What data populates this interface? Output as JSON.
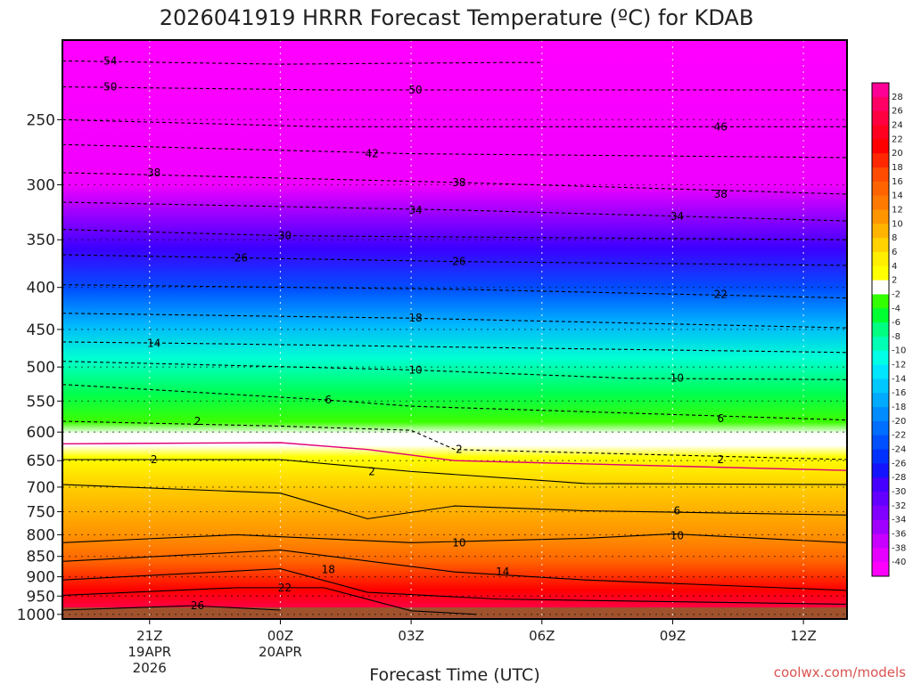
{
  "chart_data": {
    "type": "heatmap",
    "title": "2026041919 HRRR Forecast Temperature (ºC) for KDAB",
    "xlabel": "Forecast Time (UTC)",
    "ylabel": "",
    "credit": "coolwx.com/models",
    "x_ticks": [
      {
        "hour": 2,
        "lines": [
          "21Z",
          "19APR",
          "2026"
        ]
      },
      {
        "hour": 5,
        "lines": [
          "00Z",
          "20APR"
        ]
      },
      {
        "hour": 8,
        "lines": [
          "03Z"
        ]
      },
      {
        "hour": 11,
        "lines": [
          "06Z"
        ]
      },
      {
        "hour": 14,
        "lines": [
          "09Z"
        ]
      },
      {
        "hour": 17,
        "lines": [
          "12Z"
        ]
      }
    ],
    "xlim": [
      0,
      18
    ],
    "y_ticks": [
      "250",
      "300",
      "350",
      "400",
      "450",
      "500",
      "550",
      "600",
      "650",
      "700",
      "750",
      "800",
      "850",
      "900",
      "950",
      "1000"
    ],
    "ylim": [
      1013,
      200
    ],
    "y_scale": "log pressure",
    "colorbar_ticks": [
      "28",
      "26",
      "24",
      "22",
      "20",
      "18",
      "16",
      "14",
      "12",
      "10",
      "8",
      "6",
      "4",
      "2",
      "-2",
      "-4",
      "-6",
      "-8",
      "-10",
      "-12",
      "-14",
      "-16",
      "-18",
      "-20",
      "-22",
      "-24",
      "-26",
      "-28",
      "-30",
      "-32",
      "-34",
      "-36",
      "-38",
      "-40"
    ],
    "colorbar_colors": [
      "#ff0096",
      "#ff0064",
      "#ff0040",
      "#ff0020",
      "#ff0000",
      "#ff2800",
      "#ff4c00",
      "#ff6400",
      "#ff7a00",
      "#ff9600",
      "#ffb400",
      "#ffd200",
      "#ffee00",
      "#ffff00",
      "#ffffff",
      "#32ff00",
      "#00ff32",
      "#00ff80",
      "#00ffb4",
      "#00ffe6",
      "#00e6ff",
      "#00c8ff",
      "#00aaff",
      "#008cff",
      "#006eff",
      "#0050ff",
      "#0032ff",
      "#1414ff",
      "#4600ff",
      "#6400ff",
      "#8200ff",
      "#a000ff",
      "#c800ff",
      "#e600ff",
      "#ff00ff"
    ],
    "contours": [
      {
        "label": "-54",
        "values": [
          {
            "p": 212,
            "x": 0
          },
          {
            "p": 214,
            "x": 5
          },
          {
            "p": 213,
            "x": 10
          },
          {
            "p": 213,
            "x": 11
          }
        ]
      },
      {
        "label": "-50",
        "values": [
          {
            "p": 228,
            "x": 0
          },
          {
            "p": 230,
            "x": 6
          },
          {
            "p": 230,
            "x": 18
          }
        ]
      },
      {
        "label": "-46",
        "values": [
          {
            "p": 250,
            "x": 0
          },
          {
            "p": 255,
            "x": 6
          },
          {
            "p": 255,
            "x": 18
          }
        ]
      },
      {
        "label": "-42",
        "values": [
          {
            "p": 268,
            "x": 0
          },
          {
            "p": 275,
            "x": 8
          },
          {
            "p": 278,
            "x": 18
          }
        ]
      },
      {
        "label": "-38",
        "values": [
          {
            "p": 290,
            "x": 0
          },
          {
            "p": 298,
            "x": 9
          },
          {
            "p": 308,
            "x": 18
          }
        ]
      },
      {
        "label": "-34",
        "values": [
          {
            "p": 315,
            "x": 0
          },
          {
            "p": 322,
            "x": 9
          },
          {
            "p": 332,
            "x": 18
          }
        ]
      },
      {
        "label": "-30",
        "values": [
          {
            "p": 340,
            "x": 0
          },
          {
            "p": 346,
            "x": 5
          },
          {
            "p": 350,
            "x": 18
          }
        ]
      },
      {
        "label": "-26",
        "values": [
          {
            "p": 365,
            "x": 0
          },
          {
            "p": 372,
            "x": 9
          },
          {
            "p": 376,
            "x": 18
          }
        ]
      },
      {
        "label": "-22",
        "values": [
          {
            "p": 397,
            "x": 0
          },
          {
            "p": 402,
            "x": 9
          },
          {
            "p": 412,
            "x": 18
          }
        ]
      },
      {
        "label": "-18",
        "values": [
          {
            "p": 430,
            "x": 0
          },
          {
            "p": 436,
            "x": 8
          },
          {
            "p": 448,
            "x": 18
          }
        ]
      },
      {
        "label": "-14",
        "values": [
          {
            "p": 466,
            "x": 0
          },
          {
            "p": 468,
            "x": 3
          },
          {
            "p": 480,
            "x": 18
          }
        ]
      },
      {
        "label": "-10",
        "values": [
          {
            "p": 492,
            "x": 0
          },
          {
            "p": 504,
            "x": 8
          },
          {
            "p": 516,
            "x": 13
          },
          {
            "p": 518,
            "x": 18
          }
        ]
      },
      {
        "label": "-6",
        "values": [
          {
            "p": 525,
            "x": 0
          },
          {
            "p": 548,
            "x": 6
          },
          {
            "p": 558,
            "x": 8
          },
          {
            "p": 580,
            "x": 18
          }
        ]
      },
      {
        "label": "-2",
        "values": [
          {
            "p": 582,
            "x": 0
          },
          {
            "p": 590,
            "x": 5
          },
          {
            "p": 597,
            "x": 8
          },
          {
            "p": 630,
            "x": 9
          },
          {
            "p": 648,
            "x": 18
          }
        ]
      },
      {
        "label": "2",
        "values": [
          {
            "p": 648,
            "x": 0
          },
          {
            "p": 648,
            "x": 5
          },
          {
            "p": 670,
            "x": 8
          },
          {
            "p": 693,
            "x": 12
          },
          {
            "p": 695,
            "x": 18
          }
        ]
      },
      {
        "label": "6",
        "values": [
          {
            "p": 695,
            "x": 0
          },
          {
            "p": 712,
            "x": 5
          },
          {
            "p": 765,
            "x": 7
          },
          {
            "p": 738,
            "x": 9
          },
          {
            "p": 748,
            "x": 12
          },
          {
            "p": 757,
            "x": 18
          }
        ]
      },
      {
        "label": "10",
        "values": [
          {
            "p": 818,
            "x": 0
          },
          {
            "p": 800,
            "x": 4
          },
          {
            "p": 818,
            "x": 8
          },
          {
            "p": 808,
            "x": 12
          },
          {
            "p": 798,
            "x": 14
          },
          {
            "p": 818,
            "x": 18
          }
        ]
      },
      {
        "label": "14",
        "values": [
          {
            "p": 862,
            "x": 0
          },
          {
            "p": 835,
            "x": 5
          },
          {
            "p": 888,
            "x": 9
          },
          {
            "p": 908,
            "x": 12
          },
          {
            "p": 935,
            "x": 18
          }
        ]
      },
      {
        "label": "18",
        "values": [
          {
            "p": 908,
            "x": 0
          },
          {
            "p": 880,
            "x": 5
          },
          {
            "p": 940,
            "x": 7
          },
          {
            "p": 958,
            "x": 10
          },
          {
            "p": 972,
            "x": 18
          }
        ]
      },
      {
        "label": "22",
        "values": [
          {
            "p": 948,
            "x": 0
          },
          {
            "p": 928,
            "x": 4
          },
          {
            "p": 928,
            "x": 6
          },
          {
            "p": 990,
            "x": 8
          },
          {
            "p": 1000,
            "x": 9.5
          }
        ]
      },
      {
        "label": "26",
        "values": [
          {
            "p": 988,
            "x": 0
          },
          {
            "p": 976,
            "x": 3
          },
          {
            "p": 988,
            "x": 5
          }
        ]
      }
    ],
    "contour_labels": [
      {
        "text": "54",
        "p": 212,
        "x": 1.1
      },
      {
        "text": "50",
        "p": 228,
        "x": 1.1
      },
      {
        "text": "50",
        "p": 230,
        "x": 8.1
      },
      {
        "text": "42",
        "p": 275,
        "x": 7.1
      },
      {
        "text": "46",
        "p": 255,
        "x": 15.1
      },
      {
        "text": "38",
        "p": 290,
        "x": 2.1
      },
      {
        "text": "38",
        "p": 298,
        "x": 9.1
      },
      {
        "text": "38",
        "p": 308,
        "x": 15.1
      },
      {
        "text": "34",
        "p": 322,
        "x": 8.1
      },
      {
        "text": "34",
        "p": 328,
        "x": 14.1
      },
      {
        "text": "30",
        "p": 346,
        "x": 5.1
      },
      {
        "text": "26",
        "p": 368,
        "x": 4.1
      },
      {
        "text": "26",
        "p": 372,
        "x": 9.1
      },
      {
        "text": "22",
        "p": 408,
        "x": 15.1
      },
      {
        "text": "18",
        "p": 436,
        "x": 8.1
      },
      {
        "text": "14",
        "p": 468,
        "x": 2.1
      },
      {
        "text": "10",
        "p": 504,
        "x": 8.1
      },
      {
        "text": "10",
        "p": 516,
        "x": 14.1
      },
      {
        "text": "6",
        "p": 548,
        "x": 6.1
      },
      {
        "text": "6",
        "p": 578,
        "x": 15.1
      },
      {
        "text": "2",
        "p": 582,
        "x": 3.1
      },
      {
        "text": "2",
        "p": 630,
        "x": 9.1
      },
      {
        "text": "2",
        "p": 648,
        "x": 15.1
      },
      {
        "text": "2",
        "p": 648,
        "x": 2.1
      },
      {
        "text": "2",
        "p": 670,
        "x": 7.1
      },
      {
        "text": "6",
        "p": 748,
        "x": 14.1
      },
      {
        "text": "10",
        "p": 818,
        "x": 9.1
      },
      {
        "text": "10",
        "p": 802,
        "x": 14.1
      },
      {
        "text": "14",
        "p": 888,
        "x": 10.1
      },
      {
        "text": "18",
        "p": 882,
        "x": 6.1
      },
      {
        "text": "22",
        "p": 928,
        "x": 5.1
      },
      {
        "text": "26",
        "p": 976,
        "x": 3.1
      }
    ]
  }
}
